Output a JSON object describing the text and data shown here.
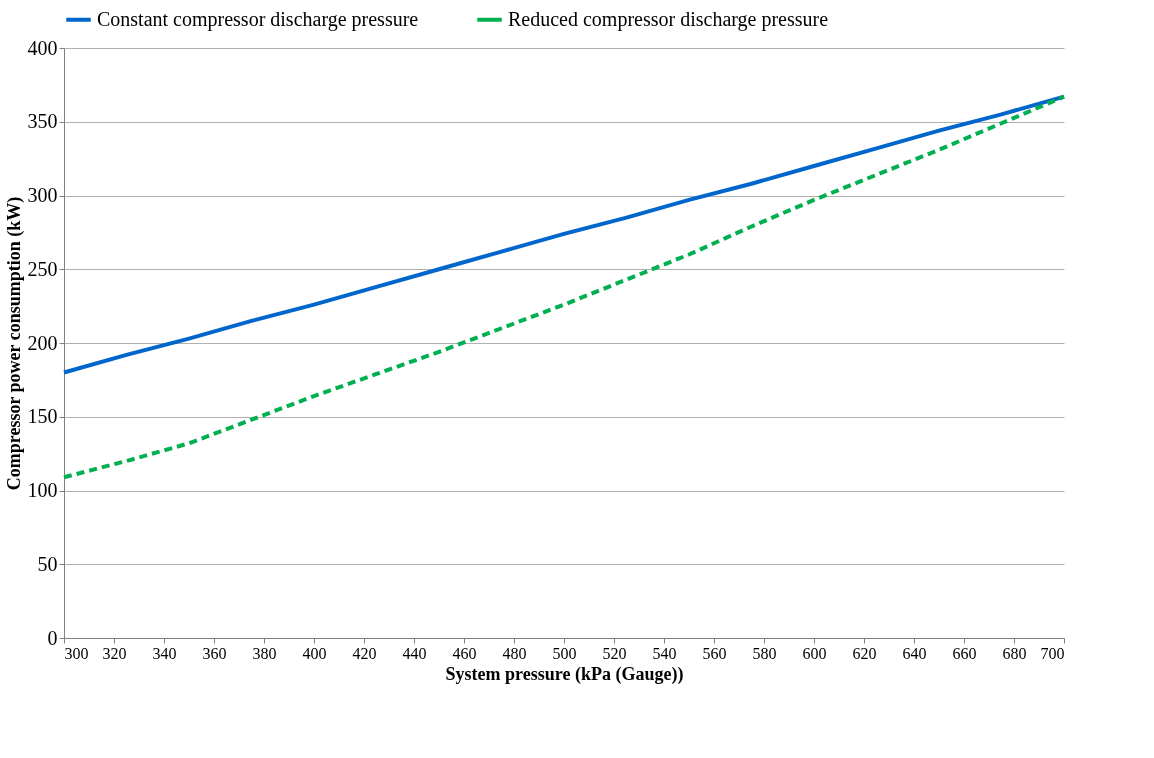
{
  "chart_data": {
    "type": "line",
    "xlabel": "System pressure  (kPa (Gauge))",
    "ylabel": "Compressor  power consumption (kW)",
    "x": [
      300,
      325,
      350,
      375,
      400,
      425,
      450,
      475,
      500,
      525,
      550,
      575,
      600,
      625,
      650,
      675,
      700
    ],
    "series": [
      {
        "name": "Constant compressor discharge pressure",
        "color": "#0066cc",
        "line_style": "solid",
        "values": [
          180,
          192,
          203,
          215,
          226,
          238,
          250,
          262,
          274,
          285,
          297,
          308,
          320,
          332,
          344,
          355,
          367
        ]
      },
      {
        "name": "Reduced compressor discharge pressure",
        "color": "#00b050",
        "line_style": "dashed",
        "values": [
          109,
          120,
          132,
          148,
          164,
          179,
          194,
          210,
          226,
          243,
          260,
          279,
          297,
          314,
          331,
          349,
          367
        ]
      }
    ],
    "xlim": [
      300,
      700
    ],
    "xticks": [
      300,
      320,
      340,
      360,
      380,
      400,
      420,
      440,
      460,
      480,
      500,
      520,
      540,
      560,
      580,
      600,
      620,
      640,
      660,
      680,
      700
    ],
    "ylim": [
      0,
      400
    ],
    "yticks": [
      0,
      50,
      100,
      150,
      200,
      250,
      300,
      350,
      400
    ],
    "grid": "y",
    "legend": "top",
    "marker": "none"
  }
}
